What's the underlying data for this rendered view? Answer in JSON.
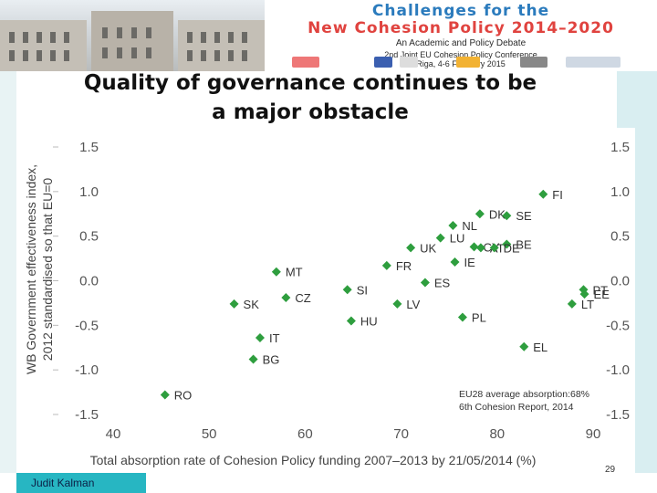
{
  "banner": {
    "line1": "Challenges for the",
    "line2": "New Cohesion Policy 2014–2020",
    "line3": "An Academic and Policy Debate",
    "line4": "2nd Joint EU Cohesion Policy Conference",
    "line5": "Riga, 4-6 February 2015"
  },
  "slide": {
    "title_line1": "Quality of governance continues to be",
    "title_line2": "a major obstacle",
    "note_line1": "EU28 average absorption:68%",
    "note_line2": "6th Cohesion Report, 2014",
    "author": "Judit Kalman",
    "page_number": "29"
  },
  "colors": {
    "marker": "#2e9e3e",
    "author_bar": "#27b6c2",
    "banner_blue": "#2b7bbd",
    "banner_red": "#e0433f"
  },
  "chart_data": {
    "type": "scatter",
    "title": "",
    "xlabel": "Total absorption rate of Cohesion Policy funding 2007–2013 by 21/05/2014 (%)",
    "ylabel_line1": "WB Government effectiveness index,",
    "ylabel_line2": "2012 standardised so that EU=0",
    "xlim": [
      40,
      95
    ],
    "ylim": [
      -1.5,
      1.5
    ],
    "x_ticks": [
      "40",
      "50",
      "60",
      "70",
      "80",
      "90"
    ],
    "y_ticks_left": [
      "1.5",
      "1.0",
      "0.5",
      "0.0",
      "-0.5",
      "-1.0",
      "-1.5"
    ],
    "y_ticks_right": [
      "1.5",
      "1.0",
      "0.5",
      "0.0",
      "-0.5",
      "-1.0",
      "-1.5"
    ],
    "grid": false,
    "points": [
      {
        "label": "FI",
        "x": 84.8,
        "y": 0.97
      },
      {
        "label": "DK",
        "x": 78.2,
        "y": 0.75
      },
      {
        "label": "SE",
        "x": 81.0,
        "y": 0.73
      },
      {
        "label": "NL",
        "x": 75.4,
        "y": 0.62
      },
      {
        "label": "LU",
        "x": 74.1,
        "y": 0.48
      },
      {
        "label": "UK",
        "x": 71.0,
        "y": 0.37
      },
      {
        "label": "CY",
        "x": 77.6,
        "y": 0.38
      },
      {
        "label": "AT",
        "x": 78.3,
        "y": 0.37
      },
      {
        "label": "BE",
        "x": 81.0,
        "y": 0.41
      },
      {
        "label": "FR",
        "x": 68.5,
        "y": 0.17
      },
      {
        "label": "DE",
        "x": 79.7,
        "y": 0.37
      },
      {
        "label": "IE",
        "x": 75.6,
        "y": 0.21
      },
      {
        "label": "MT",
        "x": 57.0,
        "y": 0.1
      },
      {
        "label": "ES",
        "x": 72.5,
        "y": -0.02
      },
      {
        "label": "SI",
        "x": 64.4,
        "y": -0.1
      },
      {
        "label": "PT",
        "x": 89.0,
        "y": -0.1
      },
      {
        "label": "EE",
        "x": 89.1,
        "y": -0.15
      },
      {
        "label": "CZ",
        "x": 58.0,
        "y": -0.19
      },
      {
        "label": "SK",
        "x": 52.6,
        "y": -0.26
      },
      {
        "label": "LV",
        "x": 69.6,
        "y": -0.26
      },
      {
        "label": "LT",
        "x": 87.8,
        "y": -0.26
      },
      {
        "label": "PL",
        "x": 76.4,
        "y": -0.41
      },
      {
        "label": "HU",
        "x": 64.8,
        "y": -0.45
      },
      {
        "label": "IT",
        "x": 55.3,
        "y": -0.64
      },
      {
        "label": "EL",
        "x": 82.8,
        "y": -0.74
      },
      {
        "label": "BG",
        "x": 54.6,
        "y": -0.88
      },
      {
        "label": "RO",
        "x": 45.4,
        "y": -1.28
      }
    ]
  }
}
